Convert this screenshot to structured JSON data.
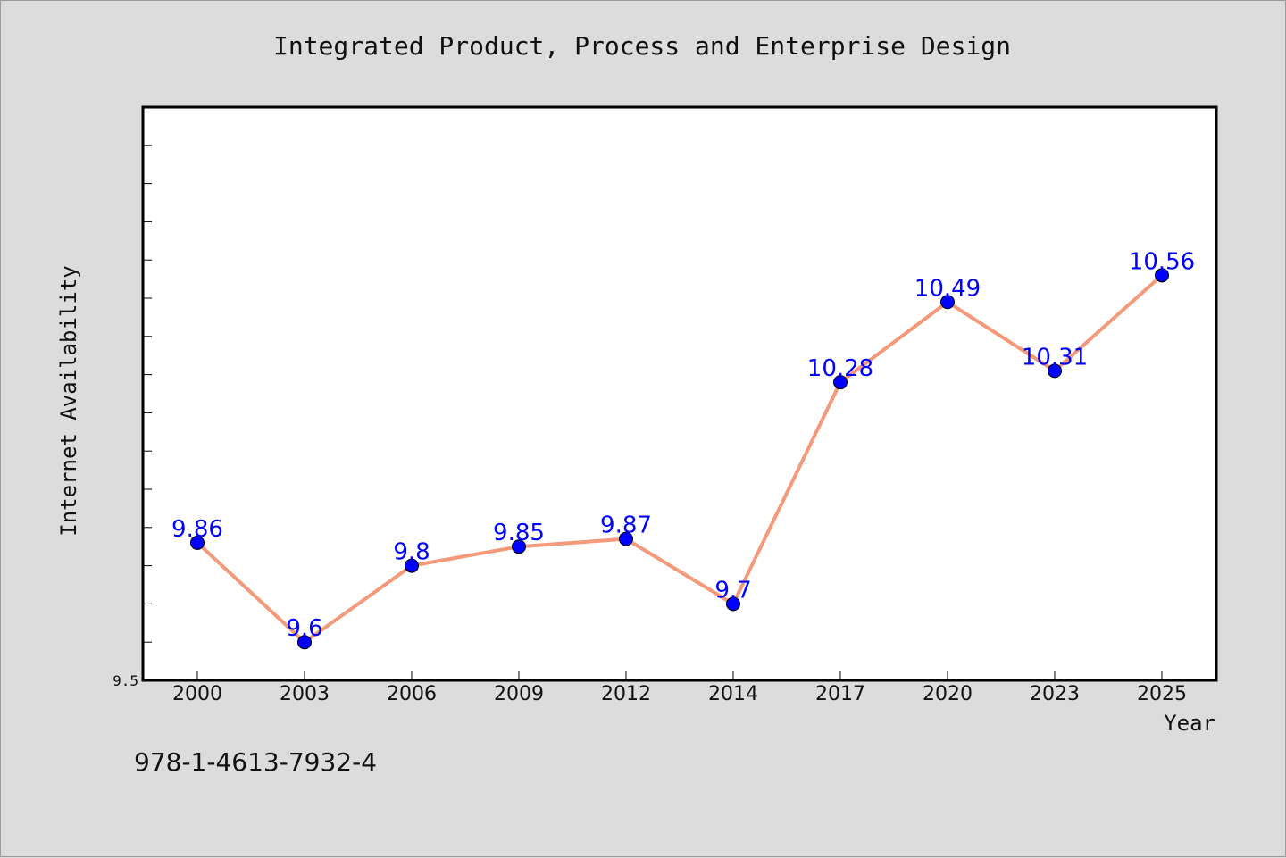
{
  "chart_data": {
    "type": "line",
    "title": "Integrated Product, Process and Enterprise Design",
    "xlabel": "Year",
    "ylabel": "Internet Availability",
    "categories": [
      "2000",
      "2003",
      "2006",
      "2009",
      "2012",
      "2014",
      "2017",
      "2020",
      "2023",
      "2025"
    ],
    "series": [
      {
        "values": [
          9.86,
          9.6,
          9.8,
          9.85,
          9.87,
          9.7,
          10.28,
          10.49,
          10.31,
          10.56
        ],
        "labels": [
          "9.86",
          "9.6",
          "9.8",
          "9.85",
          "9.87",
          "9.7",
          "10.28",
          "10.49",
          "10.31",
          "10.56"
        ],
        "line_color": "#f4997a",
        "marker_color": "#0000ff"
      }
    ],
    "ylim": [
      9.5,
      11.0
    ],
    "ytick_labels": [
      "9.5"
    ],
    "grid": false,
    "legend": "none"
  },
  "footer": {
    "isbn": "978-1-4613-7932-4"
  }
}
